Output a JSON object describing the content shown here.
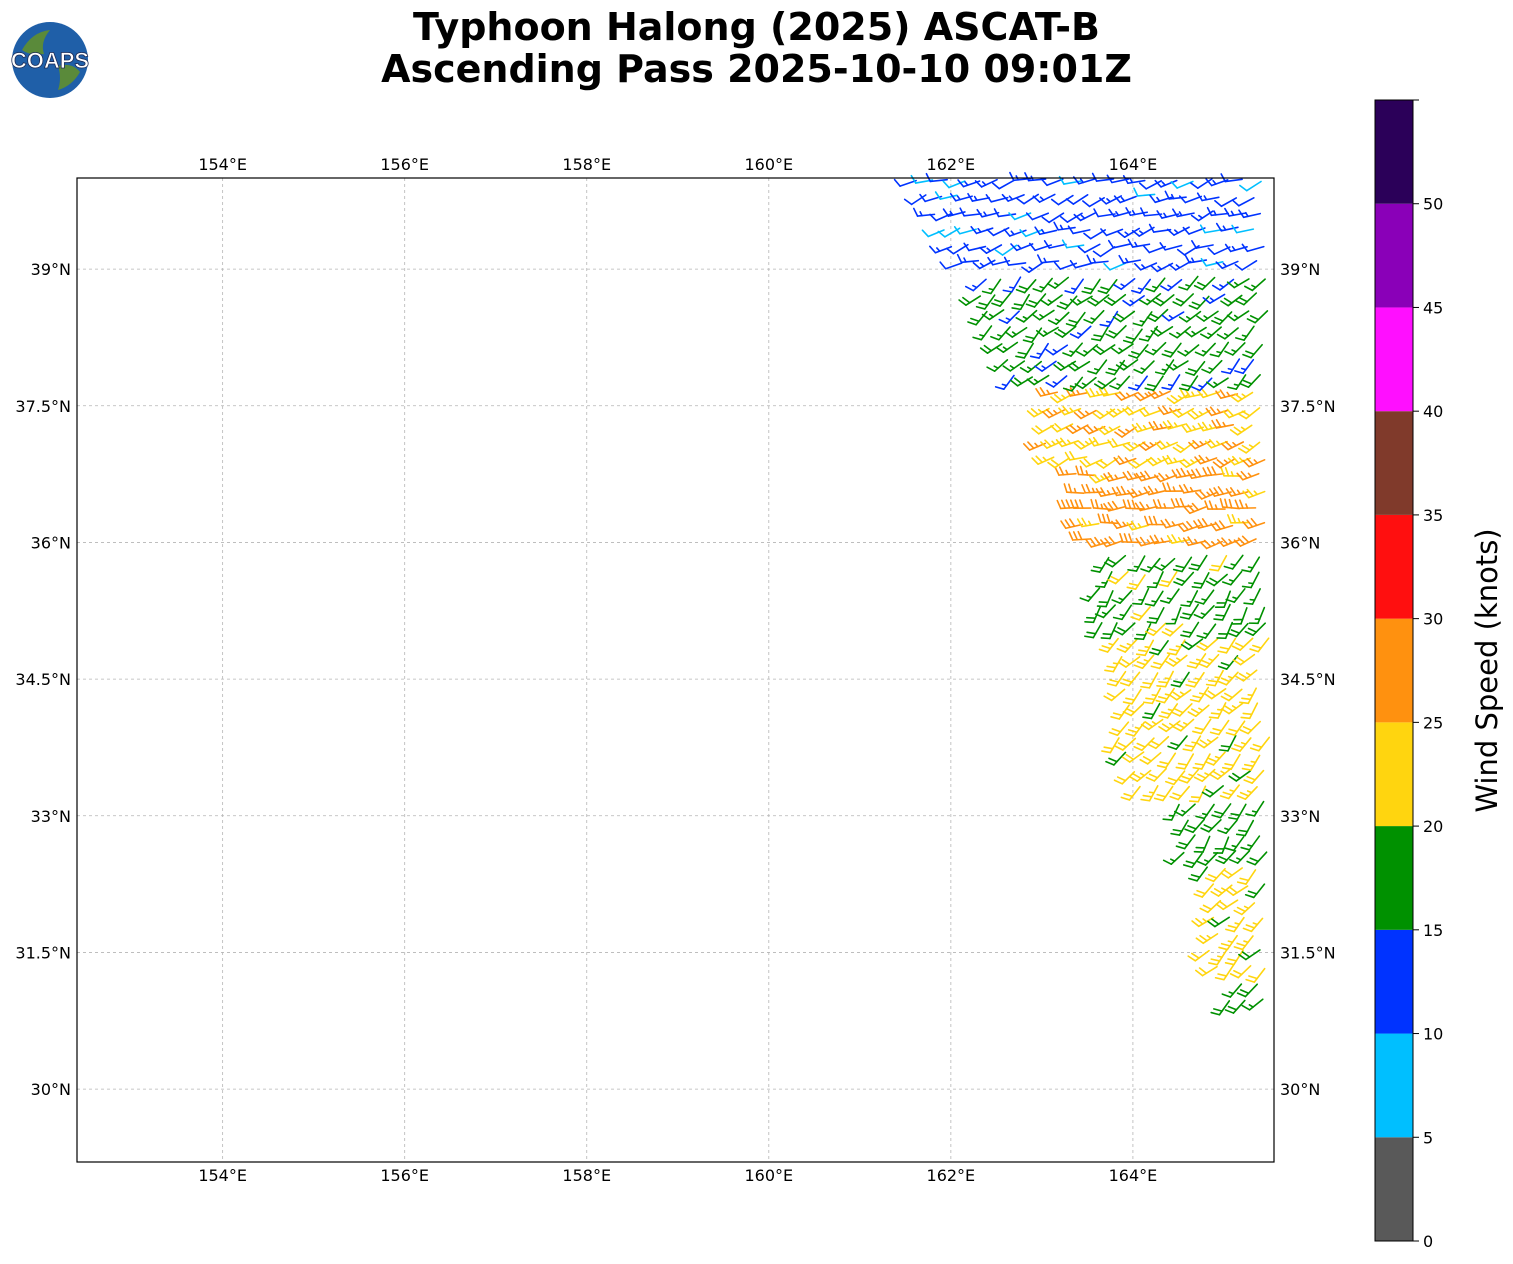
{
  "title": {
    "line1": "Typhoon Halong (2025) ASCAT-B",
    "line2": "Ascending Pass 2025-10-10 09:01Z"
  },
  "logo": {
    "text": "COAPS"
  },
  "map": {
    "lon_range": [
      152.4,
      165.55
    ],
    "lat_range": [
      29.2,
      40.0
    ],
    "lon_ticks": [
      {
        "value": 154,
        "label": "154°E"
      },
      {
        "value": 156,
        "label": "156°E"
      },
      {
        "value": 158,
        "label": "158°E"
      },
      {
        "value": 160,
        "label": "160°E"
      },
      {
        "value": 162,
        "label": "162°E"
      },
      {
        "value": 164,
        "label": "164°E"
      }
    ],
    "lat_ticks": [
      {
        "value": 39,
        "label": "39°N"
      },
      {
        "value": 37.5,
        "label": "37.5°N"
      },
      {
        "value": 36,
        "label": "36°N"
      },
      {
        "value": 34.5,
        "label": "34.5°N"
      },
      {
        "value": 33,
        "label": "33°N"
      },
      {
        "value": 31.5,
        "label": "31.5°N"
      },
      {
        "value": 30,
        "label": "30°N"
      }
    ],
    "grid": true
  },
  "colorbar": {
    "label": "Wind Speed (knots)",
    "ticks": [
      "0",
      "5",
      "10",
      "15",
      "20",
      "25",
      "30",
      "35",
      "40",
      "45",
      "50"
    ],
    "bins": [
      {
        "min": 0,
        "max": 5,
        "color": "#595959"
      },
      {
        "min": 5,
        "max": 10,
        "color": "#00bfff"
      },
      {
        "min": 10,
        "max": 15,
        "color": "#0033ff"
      },
      {
        "min": 15,
        "max": 20,
        "color": "#009100"
      },
      {
        "min": 20,
        "max": 25,
        "color": "#ffd50f"
      },
      {
        "min": 25,
        "max": 30,
        "color": "#ff910f"
      },
      {
        "min": 30,
        "max": 35,
        "color": "#ff0f0f"
      },
      {
        "min": 35,
        "max": 40,
        "color": "#803a2b"
      },
      {
        "min": 40,
        "max": 45,
        "color": "#ff0fff"
      },
      {
        "min": 45,
        "max": 50,
        "color": "#8a00b8"
      },
      {
        "min": 50,
        "max": 55,
        "color": "#2b0059"
      }
    ]
  },
  "chart_data": {
    "type": "wind-barbs",
    "units": "knots",
    "swath_regions": [
      {
        "lat": [
          39.0,
          40.0
        ],
        "lon": [
          161.6,
          165.5
        ],
        "speed_kt": 12,
        "dir_deg": 250
      },
      {
        "lat": [
          37.8,
          39.0
        ],
        "lon": [
          162.3,
          165.5
        ],
        "speed_kt": 17,
        "dir_deg": 225
      },
      {
        "lat": [
          36.8,
          37.8
        ],
        "lon": [
          163.0,
          165.5
        ],
        "speed_kt": 24,
        "dir_deg": 245
      },
      {
        "lat": [
          36.0,
          36.8
        ],
        "lon": [
          163.3,
          165.5
        ],
        "speed_kt": 27,
        "dir_deg": 260
      },
      {
        "lat": [
          35.0,
          36.0
        ],
        "lon": [
          163.6,
          165.5
        ],
        "speed_kt": 18,
        "dir_deg": 215
      },
      {
        "lat": [
          33.2,
          35.0
        ],
        "lon": [
          163.8,
          165.5
        ],
        "speed_kt": 22,
        "dir_deg": 220
      },
      {
        "lat": [
          32.5,
          33.2
        ],
        "lon": [
          164.5,
          165.5
        ],
        "speed_kt": 18,
        "dir_deg": 215
      },
      {
        "lat": [
          31.2,
          32.5
        ],
        "lon": [
          164.8,
          165.5
        ],
        "speed_kt": 22,
        "dir_deg": 225
      },
      {
        "lat": [
          30.8,
          31.2
        ],
        "lon": [
          165.0,
          165.5
        ],
        "speed_kt": 17,
        "dir_deg": 230
      }
    ]
  }
}
